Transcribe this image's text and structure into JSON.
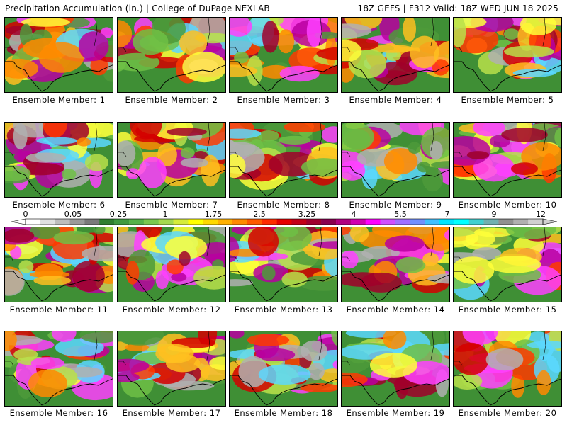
{
  "header": {
    "title": "Precipitation Accumulation (in.) | College of DuPage NEXLAB",
    "valid": "18Z GEFS | F312 Valid: 18Z WED JUN 18 2025"
  },
  "panel_label_prefix": "Ensemble Member: ",
  "members": [
    {
      "label": "Ensemble Member: 1"
    },
    {
      "label": "Ensemble Member: 2"
    },
    {
      "label": "Ensemble Member: 3"
    },
    {
      "label": "Ensemble Member: 4"
    },
    {
      "label": "Ensemble Member: 5"
    },
    {
      "label": "Ensemble Member: 6"
    },
    {
      "label": "Ensemble Member: 7"
    },
    {
      "label": "Ensemble Member: 8"
    },
    {
      "label": "Ensemble Member: 9"
    },
    {
      "label": "Ensemble Member: 10"
    },
    {
      "label": "Ensemble Member: 11"
    },
    {
      "label": "Ensemble Member: 12"
    },
    {
      "label": "Ensemble Member: 13"
    },
    {
      "label": "Ensemble Member: 14"
    },
    {
      "label": "Ensemble Member: 15"
    },
    {
      "label": "Ensemble Member: 16"
    },
    {
      "label": "Ensemble Member: 17"
    },
    {
      "label": "Ensemble Member: 18"
    },
    {
      "label": "Ensemble Member: 19"
    },
    {
      "label": "Ensemble Member: 20"
    }
  ],
  "colorbar": {
    "labels": [
      "0",
      "0.05",
      "0.25",
      "1",
      "1.75",
      "2.5",
      "3.25",
      "4",
      "5.5",
      "7",
      "9",
      "12"
    ],
    "colors": [
      "#ffffff",
      "#e0e0e0",
      "#bdbdbd",
      "#9a9a9a",
      "#7a7a7a",
      "#2f7f2f",
      "#3f9a3f",
      "#55b24a",
      "#79c84f",
      "#a4d94f",
      "#d6ec3a",
      "#ffff00",
      "#ffd800",
      "#ffb000",
      "#ff8a00",
      "#ff5a00",
      "#ff2a00",
      "#e60000",
      "#c40018",
      "#a00030",
      "#8a0050",
      "#b00080",
      "#d000b0",
      "#ff00ff",
      "#d050ff",
      "#a070ff",
      "#7090ff",
      "#40c0ff",
      "#00e5ff",
      "#00ffff",
      "#40d0d0",
      "#70b0b0",
      "#909090",
      "#b0b0b0",
      "#d0d0d0"
    ]
  }
}
